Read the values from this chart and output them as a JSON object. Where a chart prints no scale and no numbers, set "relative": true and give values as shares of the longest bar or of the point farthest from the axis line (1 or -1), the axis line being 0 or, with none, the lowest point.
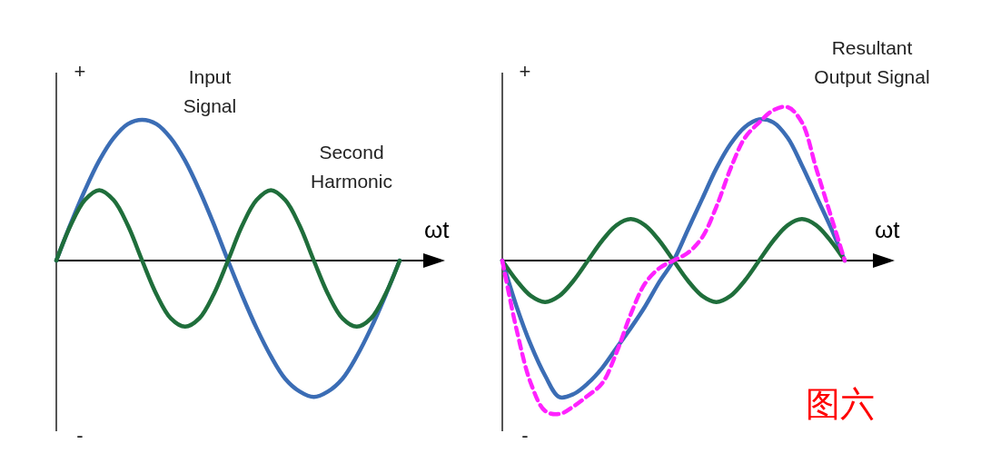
{
  "chart_data": [
    {
      "type": "line",
      "relative": true,
      "xlabel": "ωt",
      "annotations": [
        "+",
        "-"
      ],
      "categories": [
        null,
        null,
        null,
        null,
        null,
        null,
        null,
        null,
        null,
        null,
        null,
        null,
        null,
        null,
        null,
        null,
        null,
        null,
        null,
        null,
        null,
        null,
        null,
        null,
        null
      ],
      "series": [
        {
          "name": "Input Signal",
          "color": "#3b6db5",
          "values": [
            0,
            0.26,
            0.5,
            0.71,
            0.87,
            0.97,
            1,
            0.97,
            0.87,
            0.71,
            0.5,
            0.26,
            0,
            -0.25,
            -0.48,
            -0.68,
            -0.84,
            -0.93,
            -0.97,
            -0.93,
            -0.84,
            -0.68,
            -0.48,
            -0.25,
            0
          ]
        },
        {
          "name": "Second Harmonic",
          "color": "#1f6e3b",
          "values": [
            0,
            0.25,
            0.43,
            0.5,
            0.43,
            0.25,
            0,
            -0.24,
            -0.41,
            -0.47,
            -0.41,
            -0.24,
            0,
            0.25,
            0.43,
            0.5,
            0.43,
            0.25,
            0,
            -0.24,
            -0.41,
            -0.47,
            -0.41,
            -0.24,
            0
          ]
        }
      ]
    },
    {
      "type": "line",
      "relative": true,
      "xlabel": "ωt",
      "annotations": [
        "+",
        "-",
        "图六"
      ],
      "categories": [
        null,
        null,
        null,
        null,
        null,
        null,
        null,
        null,
        null,
        null,
        null,
        null,
        null,
        null,
        null,
        null,
        null,
        null,
        null,
        null,
        null,
        null,
        null,
        null,
        null
      ],
      "series": [
        {
          "color": "#3b6db5",
          "values": [
            0,
            -0.3,
            -0.55,
            -0.75,
            -0.89,
            -0.87,
            -0.8,
            -0.7,
            -0.57,
            -0.44,
            -0.3,
            -0.14,
            0,
            0.2,
            0.4,
            0.6,
            0.76,
            0.87,
            0.92,
            0.9,
            0.8,
            0.62,
            0.42,
            0.22,
            0
          ]
        },
        {
          "color": "#1f6e3b",
          "values": [
            0,
            -0.13,
            -0.23,
            -0.27,
            -0.23,
            -0.13,
            0,
            0.13,
            0.23,
            0.27,
            0.23,
            0.13,
            0,
            -0.13,
            -0.23,
            -0.27,
            -0.23,
            -0.13,
            0,
            0.13,
            0.23,
            0.27,
            0.23,
            0.13,
            0
          ]
        },
        {
          "name": "Resultant Output Signal",
          "color": "#ff22ff",
          "line_style": "dashed",
          "values": [
            0,
            -0.45,
            -0.8,
            -0.98,
            -1,
            -0.95,
            -0.88,
            -0.8,
            -0.6,
            -0.35,
            -0.15,
            -0.05,
            0,
            0.05,
            0.15,
            0.35,
            0.6,
            0.8,
            0.9,
            0.98,
            1,
            0.9,
            0.6,
            0.3,
            0
          ]
        }
      ]
    }
  ]
}
